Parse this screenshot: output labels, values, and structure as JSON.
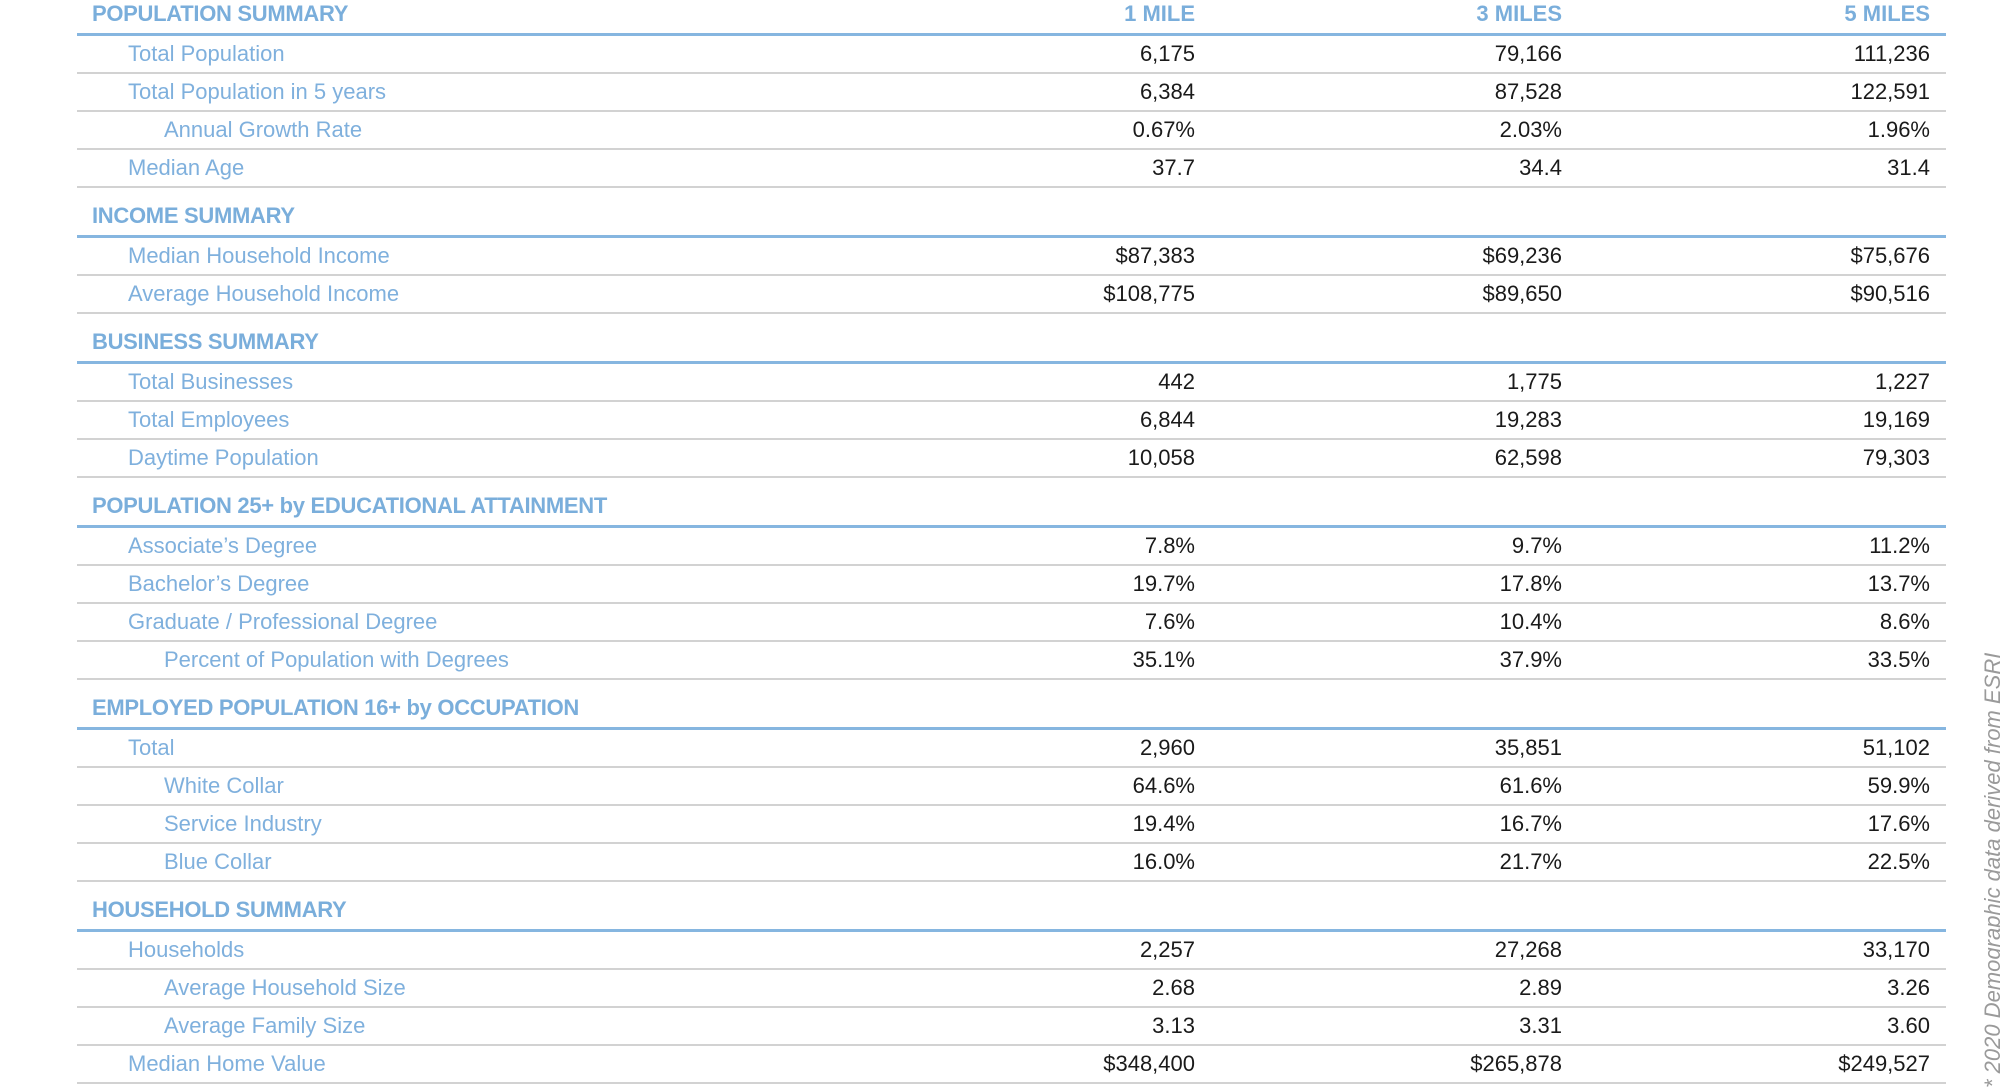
{
  "columns": [
    "1 MILE",
    "3 MILES",
    "5 MILES"
  ],
  "sections": [
    {
      "title": "POPULATION SUMMARY",
      "rows": [
        {
          "label": "Total Population",
          "indent": false,
          "values": [
            "6,175",
            "79,166",
            "111,236"
          ]
        },
        {
          "label": "Total Population in 5 years",
          "indent": false,
          "values": [
            "6,384",
            "87,528",
            "122,591"
          ]
        },
        {
          "label": "Annual Growth Rate",
          "indent": true,
          "values": [
            "0.67%",
            "2.03%",
            "1.96%"
          ]
        },
        {
          "label": "Median Age",
          "indent": false,
          "values": [
            "37.7",
            "34.4",
            "31.4"
          ]
        }
      ]
    },
    {
      "title": "INCOME SUMMARY",
      "rows": [
        {
          "label": "Median Household Income",
          "indent": false,
          "values": [
            "$87,383",
            "$69,236",
            "$75,676"
          ]
        },
        {
          "label": "Average Household Income",
          "indent": false,
          "values": [
            "$108,775",
            "$89,650",
            "$90,516"
          ]
        }
      ]
    },
    {
      "title": "BUSINESS SUMMARY",
      "rows": [
        {
          "label": "Total Businesses",
          "indent": false,
          "values": [
            "442",
            "1,775",
            "1,227"
          ]
        },
        {
          "label": "Total Employees",
          "indent": false,
          "values": [
            "6,844",
            "19,283",
            "19,169"
          ]
        },
        {
          "label": "Daytime Population",
          "indent": false,
          "values": [
            "10,058",
            "62,598",
            "79,303"
          ]
        }
      ]
    },
    {
      "title": "POPULATION 25+ by EDUCATIONAL ATTAINMENT",
      "rows": [
        {
          "label": "Associate’s Degree",
          "indent": false,
          "values": [
            "7.8%",
            "9.7%",
            "11.2%"
          ]
        },
        {
          "label": "Bachelor’s Degree",
          "indent": false,
          "values": [
            "19.7%",
            "17.8%",
            "13.7%"
          ]
        },
        {
          "label": "Graduate / Professional Degree",
          "indent": false,
          "values": [
            "7.6%",
            "10.4%",
            "8.6%"
          ]
        },
        {
          "label": "Percent of Population with Degrees",
          "indent": true,
          "values": [
            "35.1%",
            "37.9%",
            "33.5%"
          ]
        }
      ]
    },
    {
      "title": "EMPLOYED POPULATION 16+ by OCCUPATION",
      "rows": [
        {
          "label": "Total",
          "indent": false,
          "values": [
            "2,960",
            "35,851",
            "51,102"
          ]
        },
        {
          "label": "White Collar",
          "indent": true,
          "values": [
            "64.6%",
            "61.6%",
            "59.9%"
          ]
        },
        {
          "label": "Service Industry",
          "indent": true,
          "values": [
            "19.4%",
            "16.7%",
            "17.6%"
          ]
        },
        {
          "label": "Blue Collar",
          "indent": true,
          "values": [
            "16.0%",
            "21.7%",
            "22.5%"
          ]
        }
      ]
    },
    {
      "title": "HOUSEHOLD SUMMARY",
      "rows": [
        {
          "label": "Households",
          "indent": false,
          "values": [
            "2,257",
            "27,268",
            "33,170"
          ]
        },
        {
          "label": "Average Household Size",
          "indent": true,
          "values": [
            "2.68",
            "2.89",
            "3.26"
          ]
        },
        {
          "label": "Average Family Size",
          "indent": true,
          "values": [
            "3.13",
            "3.31",
            "3.60"
          ]
        },
        {
          "label": "Median Home Value",
          "indent": false,
          "values": [
            "$348,400",
            "$265,878",
            "$249,527"
          ]
        }
      ]
    }
  ],
  "footnote": "* 2020 Demographic data derived from ESRI",
  "colors": {
    "header_blue": "#7aaedb",
    "label_blue": "#7fb0dd",
    "rule_blue": "#86b6e0",
    "rule_gray": "#d2d2d2"
  }
}
